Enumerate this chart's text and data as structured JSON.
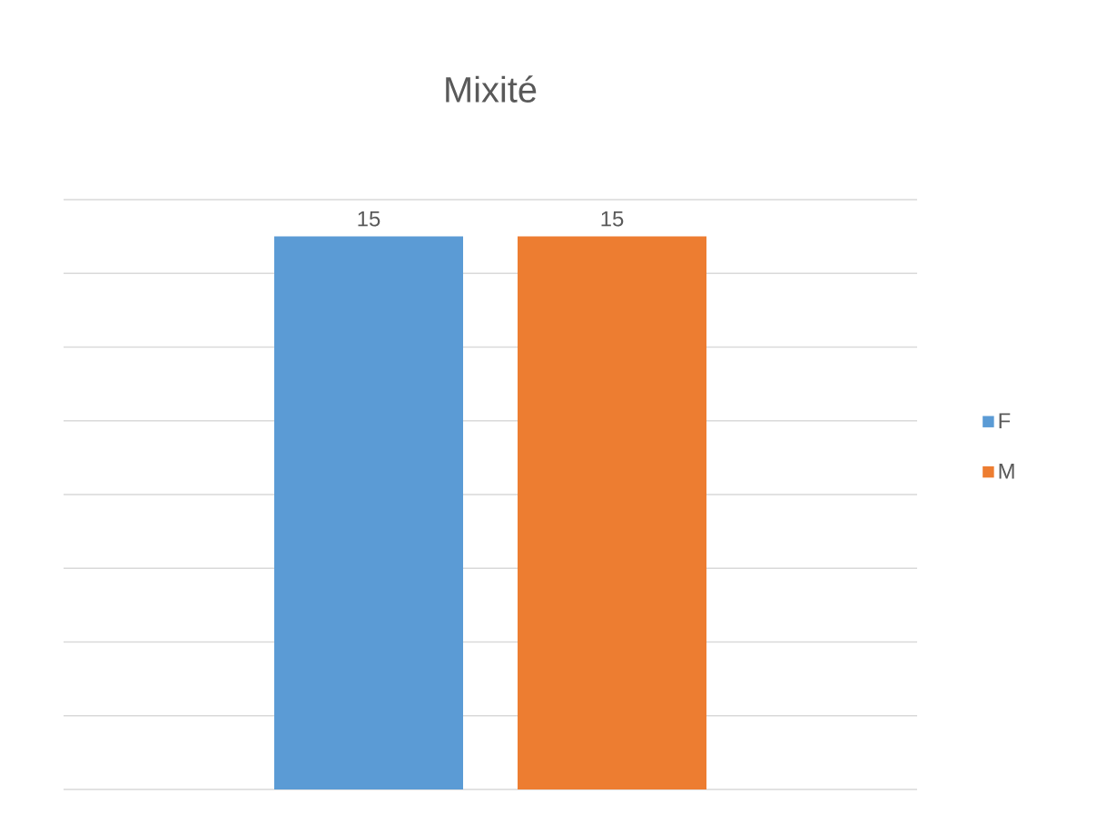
{
  "chart_data": {
    "type": "bar",
    "title": "Mixité",
    "categories": [
      null
    ],
    "series": [
      {
        "name": "F",
        "color": "#5b9bd5",
        "values": [
          15
        ]
      },
      {
        "name": "M",
        "color": "#ed7d31",
        "values": [
          15
        ]
      }
    ],
    "ylim": [
      0,
      16
    ],
    "yticks": [
      {
        "value": 0,
        "label": null
      },
      {
        "value": 2,
        "label": null
      },
      {
        "value": 4,
        "label": null
      },
      {
        "value": 6,
        "label": null
      },
      {
        "value": 8,
        "label": null
      },
      {
        "value": 10,
        "label": null
      },
      {
        "value": 12,
        "label": null
      },
      {
        "value": 14,
        "label": null
      },
      {
        "value": 16,
        "label": null
      }
    ],
    "grid": "y",
    "legend": "right",
    "data_labels": true
  }
}
